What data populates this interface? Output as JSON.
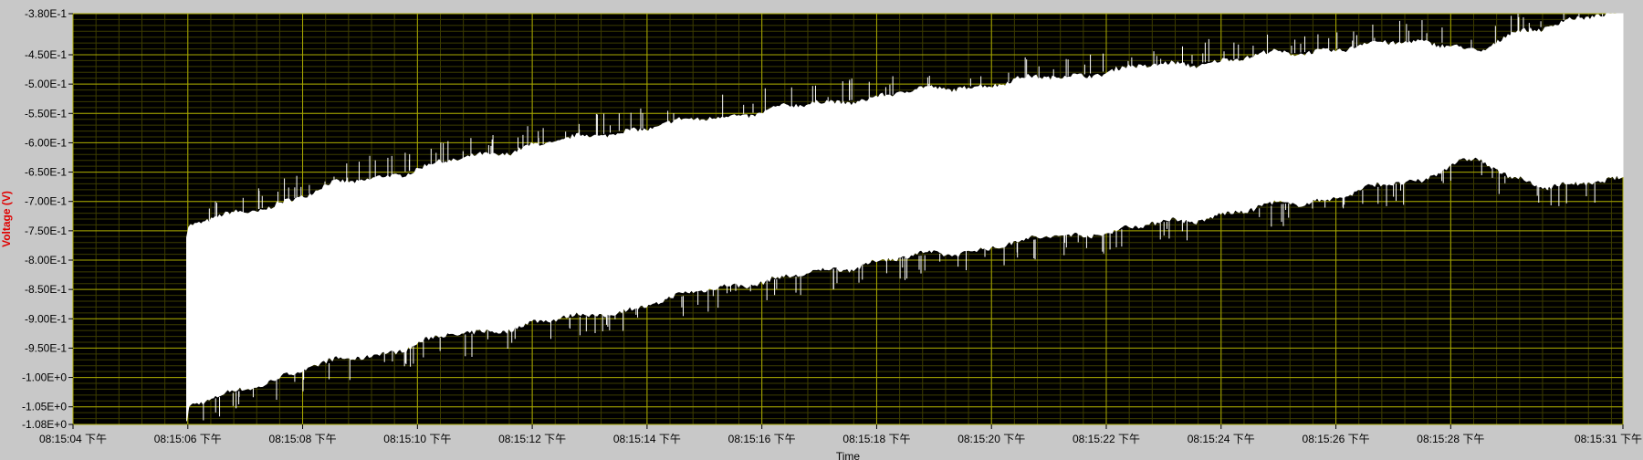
{
  "chart_data": {
    "type": "area",
    "title": "",
    "xlabel": "Time",
    "ylabel": "Voltage (V)",
    "xlim": [
      0,
      27
    ],
    "ylim": [
      -1.08,
      -0.38
    ],
    "x_ticks": [
      {
        "value": 0,
        "label": "08:15:04 下午"
      },
      {
        "value": 2,
        "label": "08:15:06 下午"
      },
      {
        "value": 4,
        "label": "08:15:08 下午"
      },
      {
        "value": 6,
        "label": "08:15:10 下午"
      },
      {
        "value": 8,
        "label": "08:15:12 下午"
      },
      {
        "value": 10,
        "label": "08:15:14 下午"
      },
      {
        "value": 12,
        "label": "08:15:16 下午"
      },
      {
        "value": 14,
        "label": "08:15:18 下午"
      },
      {
        "value": 16,
        "label": "08:15:20 下午"
      },
      {
        "value": 18,
        "label": "08:15:22 下午"
      },
      {
        "value": 20,
        "label": "08:15:24 下午"
      },
      {
        "value": 22,
        "label": "08:15:26 下午"
      },
      {
        "value": 24,
        "label": "08:15:28 下午"
      },
      {
        "value": 27,
        "label": "08:15:31 下午"
      }
    ],
    "y_ticks": [
      {
        "value": -0.38,
        "label": "-3.80E-1"
      },
      {
        "value": -0.45,
        "label": "-4.50E-1"
      },
      {
        "value": -0.5,
        "label": "-5.00E-1"
      },
      {
        "value": -0.55,
        "label": "-5.50E-1"
      },
      {
        "value": -0.6,
        "label": "-6.00E-1"
      },
      {
        "value": -0.65,
        "label": "-6.50E-1"
      },
      {
        "value": -0.7,
        "label": "-7.00E-1"
      },
      {
        "value": -0.75,
        "label": "-7.50E-1"
      },
      {
        "value": -0.8,
        "label": "-8.00E-1"
      },
      {
        "value": -0.85,
        "label": "-8.50E-1"
      },
      {
        "value": -0.9,
        "label": "-9.00E-1"
      },
      {
        "value": -0.95,
        "label": "-9.50E-1"
      },
      {
        "value": -1.0,
        "label": "-1.00E+0"
      },
      {
        "value": -1.05,
        "label": "-1.05E+0"
      },
      {
        "value": -1.08,
        "label": "-1.08E+0"
      }
    ],
    "minor_y_step": 0.01,
    "minor_x_step": 0.4,
    "grid": true,
    "colors": {
      "plot_bg": "#000000",
      "major_grid": "#a8a800",
      "minor_grid": "#3c3c00",
      "trace": "#ffffff",
      "ylabel": "#e00000"
    },
    "series": [
      {
        "x": [
          1.98,
          2.0,
          2.5,
          3.0,
          3.5,
          4.0,
          4.5,
          5.0,
          5.5,
          6.0,
          6.5,
          7.0,
          7.5,
          8.0,
          8.5,
          9.0,
          9.5,
          10.0,
          10.5,
          11.0,
          11.5,
          12.0,
          12.5,
          13.0,
          13.5,
          14.0,
          14.5,
          15.0,
          15.5,
          16.0,
          16.5,
          17.0,
          17.5,
          18.0,
          18.5,
          19.0,
          19.5,
          20.0,
          20.5,
          21.0,
          21.5,
          22.0,
          22.5,
          23.0,
          23.5,
          24.0,
          24.5,
          25.0,
          25.5,
          26.0,
          26.5,
          27.0
        ],
        "upper": [
          -0.76,
          -0.745,
          -0.73,
          -0.72,
          -0.705,
          -0.69,
          -0.675,
          -0.665,
          -0.655,
          -0.645,
          -0.635,
          -0.625,
          -0.615,
          -0.605,
          -0.6,
          -0.59,
          -0.58,
          -0.575,
          -0.568,
          -0.56,
          -0.553,
          -0.547,
          -0.54,
          -0.535,
          -0.528,
          -0.522,
          -0.515,
          -0.51,
          -0.505,
          -0.5,
          -0.495,
          -0.49,
          -0.485,
          -0.478,
          -0.473,
          -0.47,
          -0.465,
          -0.46,
          -0.455,
          -0.45,
          -0.445,
          -0.44,
          -0.435,
          -0.432,
          -0.428,
          -0.43,
          -0.45,
          -0.42,
          -0.405,
          -0.39,
          -0.385,
          -0.385
        ],
        "lower": [
          -1.08,
          -1.05,
          -1.035,
          -1.02,
          -1.0,
          -0.985,
          -0.975,
          -0.965,
          -0.955,
          -0.94,
          -0.93,
          -0.925,
          -0.915,
          -0.905,
          -0.9,
          -0.895,
          -0.885,
          -0.875,
          -0.865,
          -0.85,
          -0.84,
          -0.835,
          -0.83,
          -0.82,
          -0.81,
          -0.8,
          -0.795,
          -0.79,
          -0.785,
          -0.775,
          -0.77,
          -0.76,
          -0.755,
          -0.75,
          -0.745,
          -0.735,
          -0.73,
          -0.72,
          -0.715,
          -0.705,
          -0.7,
          -0.69,
          -0.68,
          -0.67,
          -0.665,
          -0.63,
          -0.63,
          -0.66,
          -0.67,
          -0.668,
          -0.668,
          -0.665
        ]
      }
    ]
  }
}
